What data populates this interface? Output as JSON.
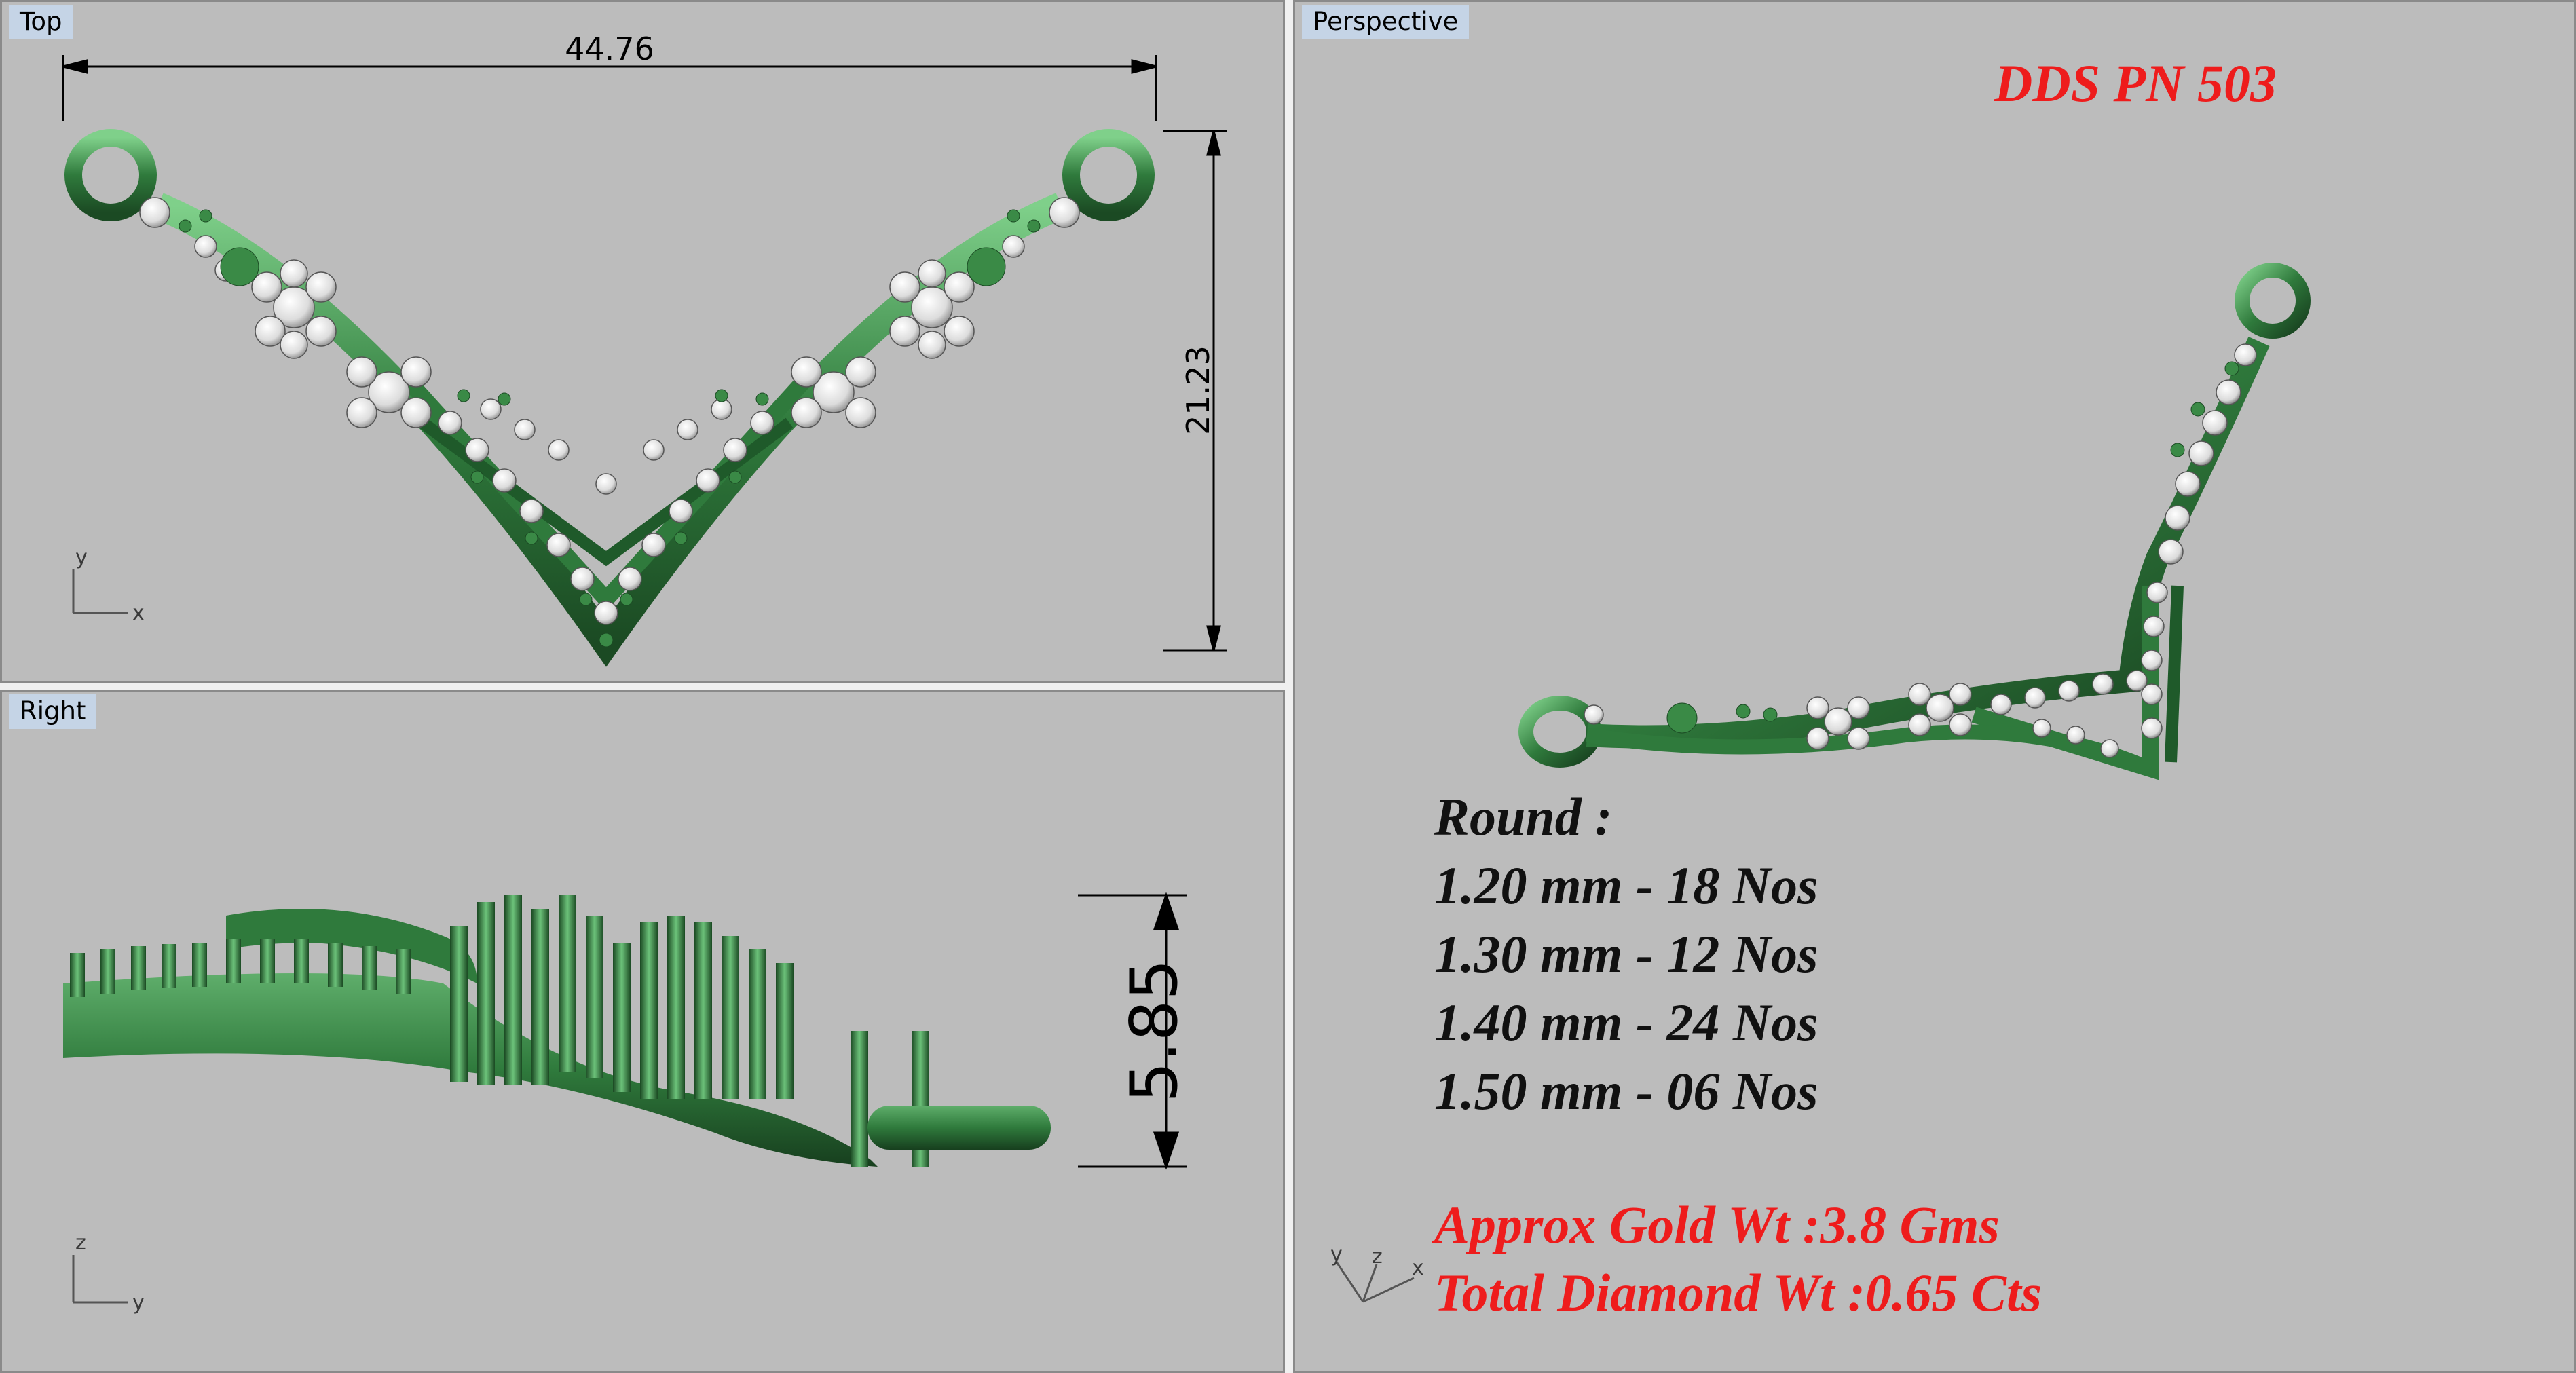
{
  "viewports": {
    "top": {
      "title": "Top",
      "dim_width": "44.76",
      "dim_height": "21.23",
      "axis_a": "y",
      "axis_b": "x"
    },
    "right": {
      "title": "Right",
      "dim_height": "5.85",
      "axis_a": "z",
      "axis_b": "y"
    },
    "perspective": {
      "title": "Perspective",
      "axis_x": "x",
      "axis_y": "y",
      "axis_z": "z"
    }
  },
  "design": {
    "code": "DDS PN 503",
    "round_heading": "Round :",
    "stones": [
      "1.20 mm - 18 Nos",
      "1.30 mm - 12 Nos",
      "1.40 mm - 24 Nos",
      "1.50 mm - 06 Nos"
    ],
    "gold_weight": "Approx Gold Wt :3.8 Gms",
    "diamond_weight": "Total Diamond Wt :0.65 Cts"
  },
  "colors": {
    "viewport_bg": "#bcbcbc",
    "metal_green": "#2f7a3c",
    "diamond_white": "#e6e6e6",
    "highlight_red": "#ee1c1c"
  }
}
